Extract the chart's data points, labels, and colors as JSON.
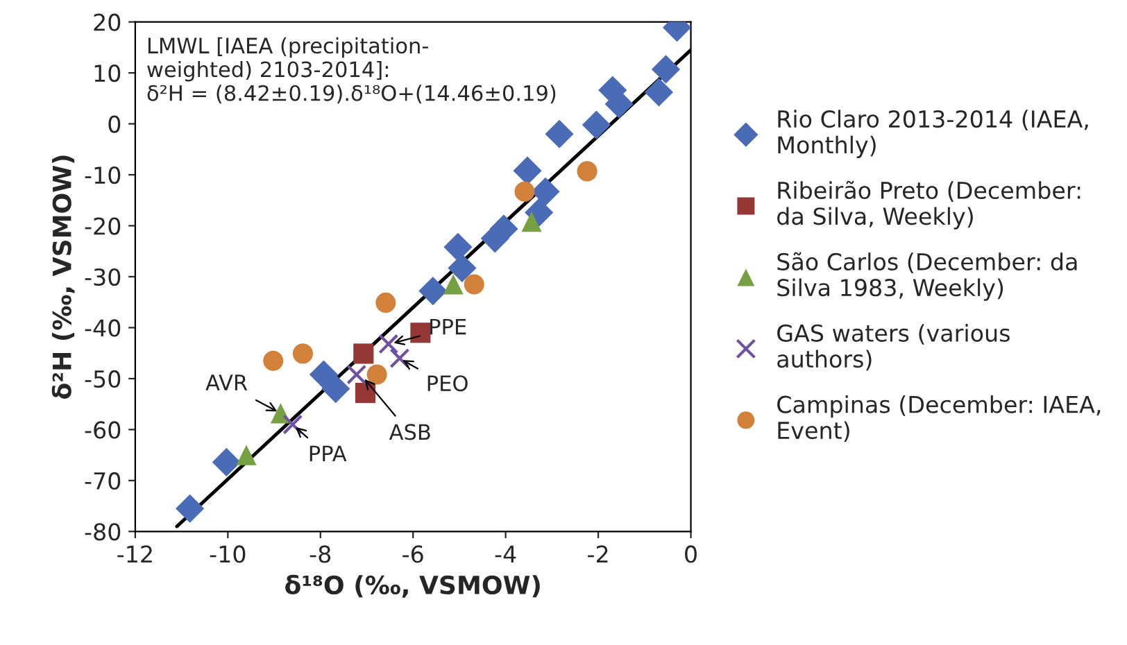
{
  "chart_data": {
    "type": "scatter",
    "xlabel": "δ¹⁸O (‰, VSMOW)",
    "ylabel": "δ²H (‰, VSMOW)",
    "xlim": [
      -12,
      0
    ],
    "xticks": [
      -12,
      -10,
      -8,
      -6,
      -4,
      -2,
      0
    ],
    "ylim": [
      -80,
      20
    ],
    "yticks": [
      -80,
      -70,
      -60,
      -50,
      -40,
      -30,
      -20,
      -10,
      0,
      10,
      20
    ],
    "grid": false,
    "legend": "right",
    "series": [
      {
        "name": "Rio Claro 2013-2014 (IAEA, Monthly)",
        "color": "#4a6bb5",
        "marker": "diamond",
        "x": [
          -0.3,
          -0.54,
          -0.69,
          -1.69,
          -1.55,
          -2.04,
          -2.84,
          -3.53,
          -3.14,
          -3.28,
          -4.04,
          -4.23,
          -5.03,
          -4.94,
          -5.57,
          -7.93,
          -7.67,
          -10.03,
          -10.82
        ],
        "values": [
          18.9,
          10.7,
          6.2,
          6.6,
          3.9,
          -0.2,
          -2.0,
          -9.2,
          -13.3,
          -17.4,
          -20.6,
          -22.5,
          -24.2,
          -28.3,
          -32.8,
          -49.2,
          -52,
          -66.4,
          -75.5
        ]
      },
      {
        "name": "Ribeirão Preto (December: da Silva, Weekly)",
        "color": "#953735",
        "marker": "square",
        "x": [
          -5.84,
          -7.07,
          -7.03
        ],
        "values": [
          -41,
          -45.1,
          -52.8
        ]
      },
      {
        "name": "São Carlos (December: da Silva 1983, Weekly)",
        "color": "#77a042",
        "marker": "triangle",
        "x": [
          -3.44,
          -5.13,
          -8.86,
          -9.6
        ],
        "values": [
          -19.2,
          -31.5,
          -56.8,
          -65
        ]
      },
      {
        "name": "GAS waters (various authors)",
        "color": "#7050a0",
        "marker": "cross",
        "x": [
          -6.53,
          -6.29,
          -7.22,
          -8.6
        ],
        "values": [
          -43.2,
          -46,
          -49.2,
          -59
        ]
      },
      {
        "name": "Campinas (December: IAEA, Event)",
        "color": "#d2813a",
        "marker": "circle",
        "x": [
          -2.24,
          -3.59,
          -4.68,
          -6.59,
          -9.02,
          -8.38,
          -6.78
        ],
        "values": [
          -9.3,
          -13.3,
          -31.5,
          -35.1,
          -46.5,
          -45.1,
          -49.2
        ]
      },
      {
        "type": "line",
        "color": "#000000",
        "marker": "none",
        "line_style": "solid",
        "x": [
          -11.1,
          0
        ],
        "values": [
          -79,
          14.5
        ]
      }
    ],
    "annotations": [
      "LMWL [IAEA (precipitation-weighted) 2103-2014]:",
      "δ²H = (8.42±0.19).δ¹⁸O+(14.46±0.19)",
      {
        "text": "PPE",
        "x": -6.5,
        "y": -43.2
      },
      {
        "text": "PEO",
        "x": -6.3,
        "y": -46
      },
      {
        "text": "ASB",
        "x": -7.1,
        "y": -49.5
      },
      {
        "text": "AVR",
        "x": -8.86,
        "y": -56.8
      },
      {
        "text": "PPA",
        "x": -8.6,
        "y": -59
      }
    ]
  }
}
